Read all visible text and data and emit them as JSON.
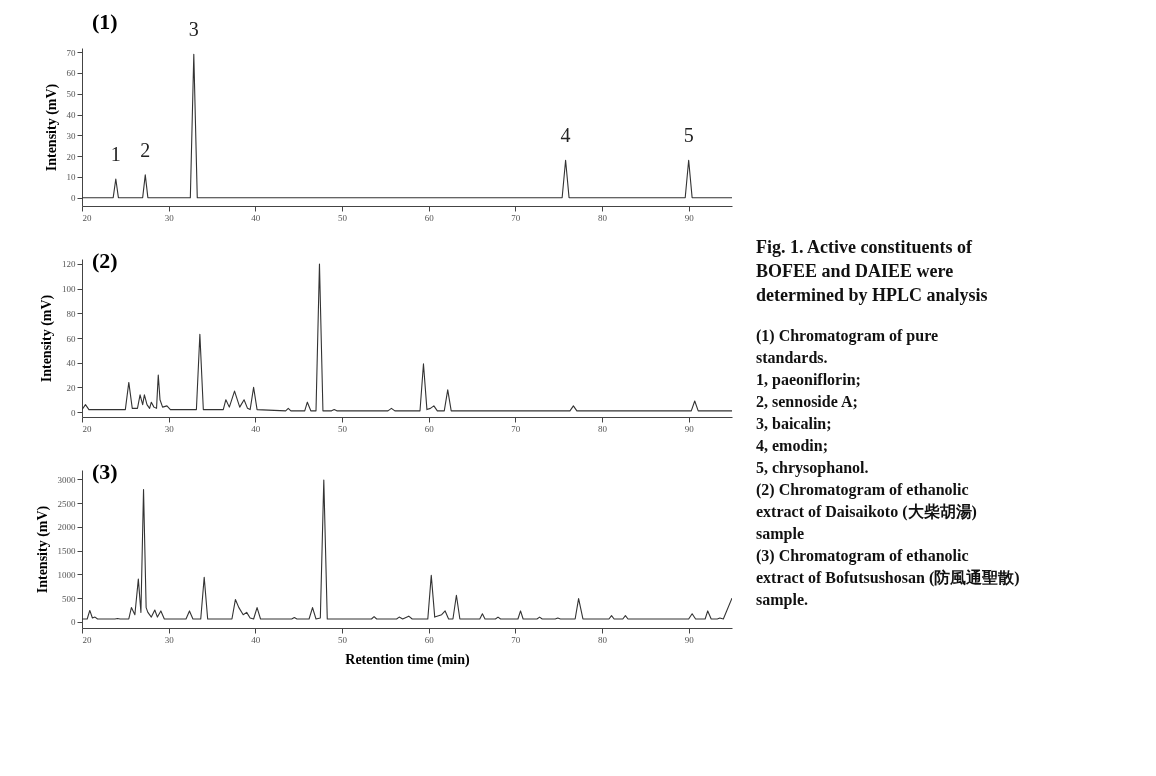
{
  "chart_data": [
    {
      "type": "line",
      "title": "(1)",
      "ylabel": "Intensity (mV)",
      "xlim": [
        20,
        95
      ],
      "xticks": [
        20,
        30,
        40,
        50,
        60,
        70,
        80,
        90
      ],
      "ylim": [
        -4,
        72
      ],
      "yticks": [
        0,
        10,
        20,
        30,
        40,
        50,
        60,
        70
      ],
      "annotations": [
        {
          "text": "1",
          "x": 23.9,
          "y": 9
        },
        {
          "text": "2",
          "x": 27.3,
          "y": 11
        },
        {
          "text": "3",
          "x": 32.9,
          "y": 69
        },
        {
          "text": "4",
          "x": 75.8,
          "y": 18
        },
        {
          "text": "5",
          "x": 90.0,
          "y": 18
        }
      ],
      "series": [
        {
          "color": "#333333",
          "x": [
            20,
            23.6,
            23.9,
            24.2,
            27.0,
            27.3,
            27.6,
            32.5,
            32.9,
            33.3,
            75.4,
            75.8,
            76.2,
            89.6,
            90.0,
            90.4,
            95
          ],
          "values": [
            0,
            0,
            9,
            0,
            0,
            11,
            0,
            0,
            69,
            0,
            0,
            18,
            0,
            0,
            18,
            0,
            0
          ]
        }
      ]
    },
    {
      "type": "line",
      "title": "(2)",
      "ylabel": "Intensity (mV)",
      "xlim": [
        20,
        95
      ],
      "xticks": [
        20,
        30,
        40,
        50,
        60,
        70,
        80,
        90
      ],
      "ylim": [
        -4,
        124
      ],
      "yticks": [
        0,
        20,
        40,
        60,
        80,
        100,
        120
      ],
      "series": [
        {
          "color": "#333333",
          "x": [
            20,
            20.4,
            20.8,
            25.0,
            25.4,
            25.8,
            26.4,
            26.7,
            27.0,
            27.2,
            27.5,
            27.8,
            28.0,
            28.3,
            28.6,
            28.8,
            29.0,
            29.3,
            29.8,
            30.2,
            33.2,
            33.6,
            34.0,
            36.3,
            36.6,
            37.0,
            37.6,
            38.2,
            38.7,
            39.1,
            39.4,
            39.8,
            40.2,
            43.5,
            43.8,
            44.1,
            45.7,
            46.0,
            46.4,
            47.0,
            47.4,
            47.8,
            48.8,
            49.1,
            49.4,
            55.3,
            55.7,
            56.1,
            59.0,
            59.4,
            59.8,
            60.2,
            60.6,
            61.0,
            61.8,
            62.2,
            62.6,
            76.3,
            76.7,
            77.1,
            90.3,
            90.7,
            91.1,
            95
          ],
          "values": [
            2,
            6,
            2,
            2,
            24,
            3,
            3,
            14,
            6,
            14,
            6,
            3,
            8,
            4,
            3,
            30,
            10,
            4,
            5,
            2,
            2,
            63,
            2,
            2,
            10,
            4,
            17,
            4,
            10,
            3,
            2,
            20,
            2,
            1,
            3,
            1,
            1,
            8,
            1,
            1,
            120,
            1,
            1,
            2,
            1,
            1,
            3,
            1,
            1,
            39,
            2,
            3,
            5,
            1,
            1,
            18,
            1,
            1,
            5,
            1,
            1,
            9,
            1,
            1
          ]
        }
      ]
    },
    {
      "type": "line",
      "title": "(3)",
      "ylabel": "Intensity (mV)",
      "xlabel": "Retention time (min)",
      "xlim": [
        20,
        95
      ],
      "xticks": [
        20,
        30,
        40,
        50,
        60,
        70,
        80,
        90
      ],
      "ylim": [
        -130,
        3200
      ],
      "yticks": [
        0,
        500,
        1000,
        1500,
        2000,
        2500,
        3000
      ],
      "series": [
        {
          "color": "#333333",
          "x": [
            20,
            20.6,
            20.9,
            21.2,
            21.5,
            21.8,
            23.8,
            24.1,
            24.4,
            25.4,
            25.7,
            26.1,
            26.5,
            26.8,
            27.1,
            27.4,
            27.6,
            28.0,
            28.4,
            28.7,
            29.1,
            29.5,
            32.0,
            32.4,
            32.8,
            33.7,
            34.1,
            34.5,
            37.3,
            37.7,
            38.1,
            38.6,
            39.0,
            39.4,
            39.8,
            40.2,
            40.6,
            44.2,
            44.5,
            44.8,
            46.2,
            46.6,
            47.0,
            47.5,
            47.9,
            48.3,
            53.4,
            53.7,
            54.0,
            56.3,
            56.6,
            57.0,
            57.7,
            58.1,
            59.9,
            60.3,
            60.7,
            61.5,
            61.9,
            62.3,
            62.8,
            63.2,
            63.6,
            65.9,
            66.2,
            66.5,
            67.7,
            68.0,
            68.3,
            70.3,
            70.6,
            70.9,
            72.5,
            72.8,
            73.1,
            74.6,
            74.9,
            75.2,
            76.9,
            77.3,
            77.8,
            80.8,
            81.1,
            81.4,
            82.4,
            82.7,
            83.0,
            90.0,
            90.4,
            90.8,
            91.9,
            92.2,
            92.6,
            93.3,
            93.6,
            94.0,
            95
          ],
          "values": [
            60,
            60,
            240,
            80,
            100,
            60,
            60,
            70,
            60,
            60,
            300,
            150,
            900,
            200,
            2790,
            300,
            200,
            100,
            250,
            100,
            230,
            60,
            60,
            230,
            60,
            60,
            940,
            60,
            60,
            470,
            300,
            150,
            200,
            80,
            60,
            300,
            60,
            60,
            90,
            60,
            60,
            300,
            60,
            80,
            2990,
            60,
            60,
            110,
            60,
            60,
            100,
            60,
            120,
            60,
            60,
            980,
            100,
            150,
            230,
            60,
            60,
            560,
            60,
            60,
            170,
            60,
            60,
            100,
            60,
            60,
            230,
            60,
            60,
            100,
            60,
            60,
            80,
            60,
            60,
            490,
            60,
            60,
            130,
            60,
            60,
            130,
            60,
            60,
            170,
            60,
            60,
            230,
            60,
            60,
            80,
            60,
            500
          ]
        }
      ]
    },
    {
      "type": "other",
      "title": "Fig. 1. Active constituents of BOFEE and DAIEE were determined by HPLC analysis",
      "annotations": [
        "(1) Chromatogram of pure standards.",
        "1, paeoniflorin;",
        "2, sennoside A;",
        "3, baicalin;",
        "4, emodin;",
        "5, chrysophanol.",
        "(2) Chromatogram of ethanolic extract of Daisaikoto (大柴胡湯) sample",
        "(3) Chromatogram of ethanolic extract of Bofutsushosan (防風通聖散) sample."
      ]
    }
  ]
}
